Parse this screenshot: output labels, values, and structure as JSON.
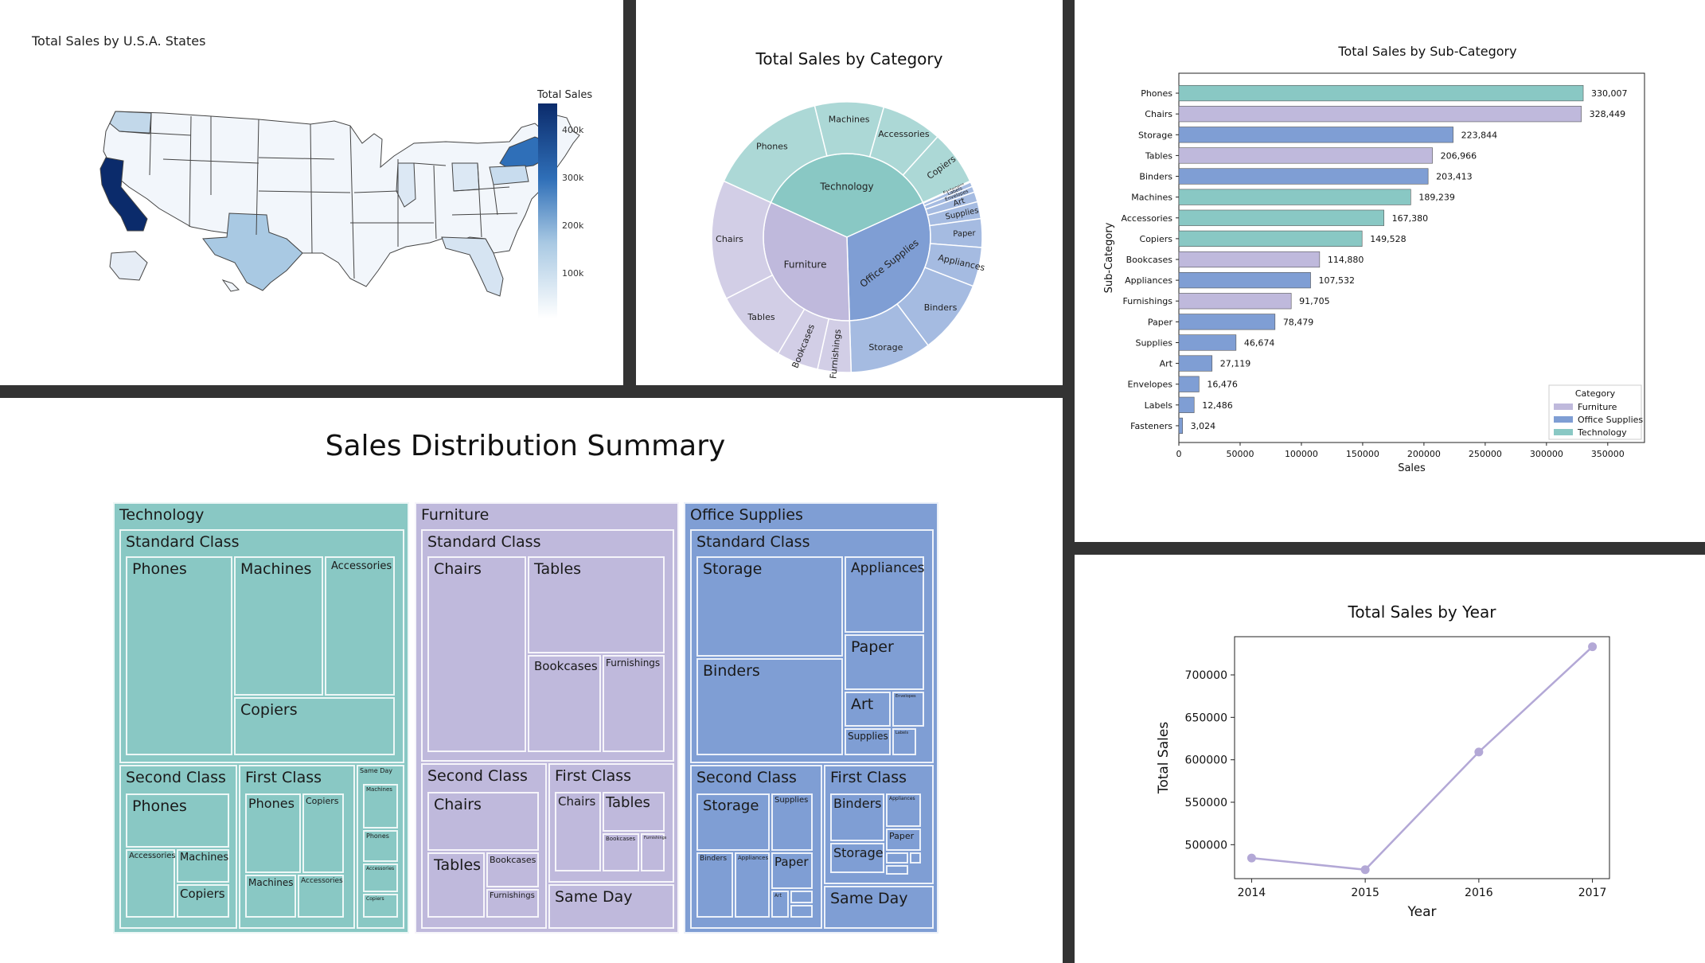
{
  "colors": {
    "furniture": "#bfb9dc",
    "office": "#7f9ed4",
    "technology": "#89c8c4",
    "line": "#b3a8d6",
    "map_dark": "#0b2b6b"
  },
  "map": {
    "title": "Total Sales by U.S.A. States",
    "legend_title": "Total Sales",
    "ticks": [
      "400k",
      "300k",
      "200k",
      "100k"
    ]
  },
  "sunburst": {
    "title": "Total Sales by Category",
    "inner": [
      {
        "label": "Technology",
        "value": 836154,
        "color": "#89c8c4"
      },
      {
        "label": "Office Supplies",
        "value": 719047,
        "color": "#7f9ed4"
      },
      {
        "label": "Furniture",
        "value": 741999,
        "color": "#bfb9dc"
      }
    ],
    "outer": [
      {
        "label": "Phones",
        "value": 330007,
        "parent": "Technology"
      },
      {
        "label": "Machines",
        "value": 189239,
        "parent": "Technology"
      },
      {
        "label": "Accessories",
        "value": 167380,
        "parent": "Technology"
      },
      {
        "label": "Copiers",
        "value": 149528,
        "parent": "Technology"
      },
      {
        "label": "Fasteners",
        "value": 3024,
        "parent": "Office Supplies"
      },
      {
        "label": "Labels",
        "value": 12486,
        "parent": "Office Supplies"
      },
      {
        "label": "Envelopes",
        "value": 16476,
        "parent": "Office Supplies"
      },
      {
        "label": "Art",
        "value": 27119,
        "parent": "Office Supplies"
      },
      {
        "label": "Supplies",
        "value": 46674,
        "parent": "Office Supplies"
      },
      {
        "label": "Paper",
        "value": 78479,
        "parent": "Office Supplies"
      },
      {
        "label": "Appliances",
        "value": 107532,
        "parent": "Office Supplies"
      },
      {
        "label": "Binders",
        "value": 203413,
        "parent": "Office Supplies"
      },
      {
        "label": "Storage",
        "value": 223844,
        "parent": "Office Supplies"
      },
      {
        "label": "Furnishings",
        "value": 91705,
        "parent": "Furniture"
      },
      {
        "label": "Bookcases",
        "value": 114880,
        "parent": "Furniture"
      },
      {
        "label": "Tables",
        "value": 206966,
        "parent": "Furniture"
      },
      {
        "label": "Chairs",
        "value": 328449,
        "parent": "Furniture"
      }
    ]
  },
  "chart_data": [
    {
      "type": "bar",
      "title": "Total Sales by Sub-Category",
      "xlabel": "Sales",
      "ylabel": "Sub-Category",
      "xlim": [
        0,
        380000
      ],
      "xticks": [
        0,
        50000,
        100000,
        150000,
        200000,
        250000,
        300000,
        350000
      ],
      "categories": [
        "Phones",
        "Chairs",
        "Storage",
        "Tables",
        "Binders",
        "Machines",
        "Accessories",
        "Copiers",
        "Bookcases",
        "Appliances",
        "Furnishings",
        "Paper",
        "Supplies",
        "Art",
        "Envelopes",
        "Labels",
        "Fasteners"
      ],
      "values": [
        330007,
        328449,
        223844,
        206966,
        203413,
        189239,
        167380,
        149528,
        114880,
        107532,
        91705,
        78479,
        46674,
        27119,
        16476,
        12486,
        3024
      ],
      "value_labels": [
        "330,007",
        "328,449",
        "223,844",
        "206,966",
        "203,413",
        "189,239",
        "167,380",
        "149,528",
        "114,880",
        "107,532",
        "91,705",
        "78,479",
        "46,674",
        "27,119",
        "16,476",
        "12,486",
        "3,024"
      ],
      "groups": [
        "Technology",
        "Furniture",
        "Office Supplies",
        "Furniture",
        "Office Supplies",
        "Technology",
        "Technology",
        "Technology",
        "Furniture",
        "Office Supplies",
        "Furniture",
        "Office Supplies",
        "Office Supplies",
        "Office Supplies",
        "Office Supplies",
        "Office Supplies",
        "Office Supplies"
      ],
      "legend": {
        "title": "Category",
        "entries": [
          "Furniture",
          "Office Supplies",
          "Technology"
        ],
        "position": "lower-right"
      }
    },
    {
      "type": "line",
      "title": "Total Sales by Year",
      "xlabel": "Year",
      "ylabel": "Total Sales",
      "x": [
        2014,
        2015,
        2016,
        2017
      ],
      "y": [
        484247,
        470533,
        609206,
        733215
      ],
      "xticks": [
        "2014",
        "2015",
        "2016",
        "2017"
      ],
      "yticks": [
        500000,
        550000,
        600000,
        650000,
        700000
      ],
      "ylim": [
        460000,
        745000
      ]
    }
  ],
  "treemap": {
    "title": "Sales Distribution Summary",
    "labels": {
      "technology": "Technology",
      "furniture": "Furniture",
      "office": "Office Supplies",
      "standard": "Standard Class",
      "second": "Second Class",
      "first": "First Class",
      "sameday": "Same Day",
      "phones": "Phones",
      "machines": "Machines",
      "accessories": "Accessories",
      "copiers": "Copiers",
      "chairs": "Chairs",
      "tables": "Tables",
      "bookcases": "Bookcases",
      "furnishings": "Furnishings",
      "storage": "Storage",
      "appliances": "Appliances",
      "binders": "Binders",
      "paper": "Paper",
      "art": "Art",
      "supplies": "Supplies",
      "envelopes": "Envelopes",
      "labels": "Labels"
    }
  }
}
